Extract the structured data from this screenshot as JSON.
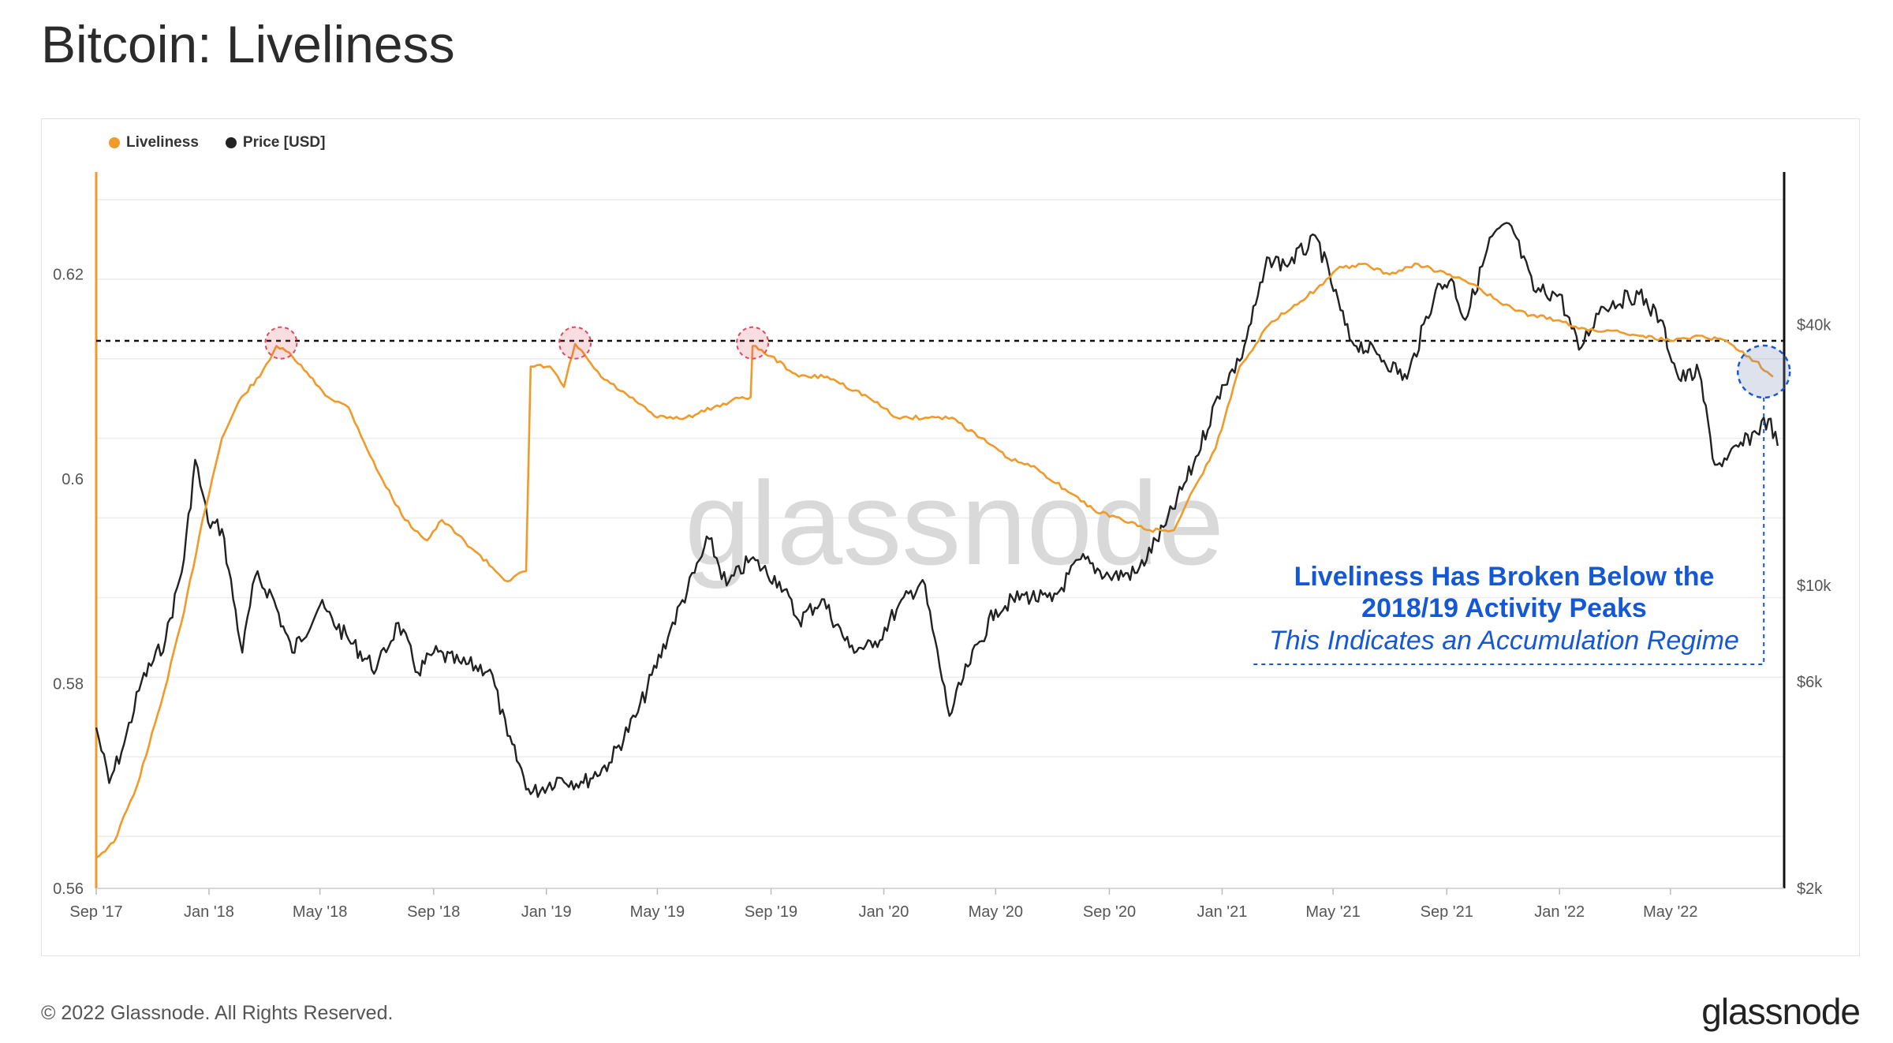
{
  "page": {
    "title": "Bitcoin: Liveliness",
    "copyright": "© 2022 Glassnode. All Rights Reserved.",
    "logo": "glassnode",
    "watermark": "glassnode"
  },
  "colors": {
    "liveliness": "#f09a2a",
    "price": "#222222",
    "annotation": "#1558d6",
    "highlight_red": "#e04a5a",
    "threshold": "#111111"
  },
  "chart_data": {
    "type": "line",
    "title": "Bitcoin: Liveliness",
    "legend": [
      "Liveliness",
      "Price [USD]"
    ],
    "legend_position": "top-left",
    "grid": true,
    "x_ticks": [
      "Sep '17",
      "Jan '18",
      "May '18",
      "Sep '18",
      "Jan '19",
      "May '19",
      "Sep '19",
      "Jan '20",
      "May '20",
      "Sep '20",
      "Jan '21",
      "May '21",
      "Sep '21",
      "Jan '22",
      "May '22"
    ],
    "x_range": [
      "2017-09-01",
      "2022-09-01"
    ],
    "y_left": {
      "label": "",
      "ticks": [
        "0.56",
        "0.58",
        "0.6",
        "0.62"
      ],
      "range": [
        0.56,
        0.63
      ]
    },
    "y_right": {
      "label": "",
      "scale": "log",
      "ticks": [
        "$2k",
        "$6k",
        "$10k",
        "$40k"
      ],
      "range": [
        2000,
        90000
      ]
    },
    "threshold_value": 0.6135,
    "series": [
      {
        "name": "Liveliness",
        "axis": "left",
        "points": [
          [
            "2017-09-01",
            0.563
          ],
          [
            "2017-09-20",
            0.5645
          ],
          [
            "2017-10-15",
            0.57
          ],
          [
            "2017-11-10",
            0.578
          ],
          [
            "2017-12-05",
            0.587
          ],
          [
            "2017-12-25",
            0.596
          ],
          [
            "2018-01-15",
            0.604
          ],
          [
            "2018-02-05",
            0.608
          ],
          [
            "2018-02-25",
            0.61
          ],
          [
            "2018-03-15",
            0.613
          ],
          [
            "2018-04-01",
            0.612
          ],
          [
            "2018-04-20",
            0.61
          ],
          [
            "2018-05-10",
            0.608
          ],
          [
            "2018-06-01",
            0.607
          ],
          [
            "2018-07-01",
            0.601
          ],
          [
            "2018-08-01",
            0.596
          ],
          [
            "2018-08-25",
            0.594
          ],
          [
            "2018-09-10",
            0.596
          ],
          [
            "2018-10-15",
            0.593
          ],
          [
            "2018-11-20",
            0.59
          ],
          [
            "2018-12-10",
            0.591
          ],
          [
            "2018-12-15",
            0.611
          ],
          [
            "2019-01-05",
            0.611
          ],
          [
            "2019-01-20",
            0.609
          ],
          [
            "2019-02-01",
            0.6132
          ],
          [
            "2019-03-01",
            0.61
          ],
          [
            "2019-04-01",
            0.608
          ],
          [
            "2019-05-01",
            0.606
          ],
          [
            "2019-06-01",
            0.606
          ],
          [
            "2019-07-01",
            0.607
          ],
          [
            "2019-08-01",
            0.608
          ],
          [
            "2019-08-10",
            0.608
          ],
          [
            "2019-08-12",
            0.613
          ],
          [
            "2019-09-01",
            0.612
          ],
          [
            "2019-10-01",
            0.61
          ],
          [
            "2019-11-01",
            0.61
          ],
          [
            "2019-12-15",
            0.608
          ],
          [
            "2020-01-15",
            0.606
          ],
          [
            "2020-02-15",
            0.606
          ],
          [
            "2020-03-15",
            0.606
          ],
          [
            "2020-04-15",
            0.604
          ],
          [
            "2020-05-15",
            0.602
          ],
          [
            "2020-06-15",
            0.601
          ],
          [
            "2020-07-15",
            0.599
          ],
          [
            "2020-08-15",
            0.597
          ],
          [
            "2020-09-15",
            0.596
          ],
          [
            "2020-10-15",
            0.595
          ],
          [
            "2020-11-10",
            0.595
          ],
          [
            "2020-12-01",
            0.599
          ],
          [
            "2020-12-25",
            0.603
          ],
          [
            "2021-01-20",
            0.611
          ],
          [
            "2021-02-20",
            0.615
          ],
          [
            "2021-03-20",
            0.617
          ],
          [
            "2021-04-20",
            0.619
          ],
          [
            "2021-05-05",
            0.6205
          ],
          [
            "2021-06-01",
            0.621
          ],
          [
            "2021-07-01",
            0.62
          ],
          [
            "2021-08-01",
            0.621
          ],
          [
            "2021-09-01",
            0.62
          ],
          [
            "2021-10-01",
            0.619
          ],
          [
            "2021-11-01",
            0.617
          ],
          [
            "2021-12-01",
            0.616
          ],
          [
            "2022-01-01",
            0.6155
          ],
          [
            "2022-02-01",
            0.6145
          ],
          [
            "2022-03-01",
            0.6145
          ],
          [
            "2022-04-01",
            0.614
          ],
          [
            "2022-05-01",
            0.6135
          ],
          [
            "2022-06-01",
            0.614
          ],
          [
            "2022-07-01",
            0.6135
          ],
          [
            "2022-08-01",
            0.6115
          ],
          [
            "2022-08-20",
            0.61
          ]
        ]
      },
      {
        "name": "Price [USD]",
        "axis": "right",
        "points": [
          [
            "2017-09-01",
            4700
          ],
          [
            "2017-09-15",
            3500
          ],
          [
            "2017-10-01",
            4300
          ],
          [
            "2017-10-20",
            6000
          ],
          [
            "2017-11-15",
            7500
          ],
          [
            "2017-12-05",
            11500
          ],
          [
            "2017-12-17",
            19500
          ],
          [
            "2017-12-31",
            14000
          ],
          [
            "2018-01-15",
            13500
          ],
          [
            "2018-02-06",
            7000
          ],
          [
            "2018-02-20",
            10500
          ],
          [
            "2018-03-10",
            9500
          ],
          [
            "2018-04-01",
            7000
          ],
          [
            "2018-05-01",
            9000
          ],
          [
            "2018-06-01",
            7500
          ],
          [
            "2018-07-01",
            6400
          ],
          [
            "2018-07-25",
            8200
          ],
          [
            "2018-08-15",
            6300
          ],
          [
            "2018-09-01",
            7000
          ],
          [
            "2018-10-01",
            6600
          ],
          [
            "2018-11-01",
            6400
          ],
          [
            "2018-11-20",
            4500
          ],
          [
            "2018-12-15",
            3300
          ],
          [
            "2019-01-15",
            3600
          ],
          [
            "2019-02-10",
            3500
          ],
          [
            "2019-03-10",
            3900
          ],
          [
            "2019-04-10",
            5100
          ],
          [
            "2019-05-15",
            7900
          ],
          [
            "2019-06-26",
            12800
          ],
          [
            "2019-07-15",
            10000
          ],
          [
            "2019-08-10",
            11500
          ],
          [
            "2019-09-10",
            10200
          ],
          [
            "2019-10-01",
            8300
          ],
          [
            "2019-10-26",
            9300
          ],
          [
            "2019-11-25",
            7200
          ],
          [
            "2019-12-20",
            7200
          ],
          [
            "2020-01-15",
            8800
          ],
          [
            "2020-02-12",
            10300
          ],
          [
            "2020-03-12",
            5000
          ],
          [
            "2020-04-01",
            6500
          ],
          [
            "2020-05-01",
            8800
          ],
          [
            "2020-06-01",
            9500
          ],
          [
            "2020-07-01",
            9200
          ],
          [
            "2020-08-01",
            11500
          ],
          [
            "2020-09-01",
            10500
          ],
          [
            "2020-10-01",
            10700
          ],
          [
            "2020-11-01",
            13800
          ],
          [
            "2020-12-01",
            19000
          ],
          [
            "2021-01-01",
            29000
          ],
          [
            "2021-01-20",
            33000
          ],
          [
            "2021-02-21",
            57000
          ],
          [
            "2021-03-10",
            55000
          ],
          [
            "2021-04-14",
            63000
          ],
          [
            "2021-05-19",
            37000
          ],
          [
            "2021-06-20",
            34000
          ],
          [
            "2021-07-20",
            30000
          ],
          [
            "2021-08-20",
            48000
          ],
          [
            "2021-09-06",
            51000
          ],
          [
            "2021-09-21",
            41000
          ],
          [
            "2021-10-20",
            64000
          ],
          [
            "2021-11-10",
            67500
          ],
          [
            "2021-12-04",
            48000
          ],
          [
            "2022-01-01",
            47000
          ],
          [
            "2022-01-22",
            35000
          ],
          [
            "2022-02-15",
            44000
          ],
          [
            "2022-03-28",
            47000
          ],
          [
            "2022-04-20",
            41000
          ],
          [
            "2022-05-10",
            30000
          ],
          [
            "2022-06-01",
            31000
          ],
          [
            "2022-06-18",
            19000
          ],
          [
            "2022-07-01",
            19500
          ],
          [
            "2022-08-15",
            24200
          ],
          [
            "2022-08-25",
            21000
          ]
        ]
      }
    ],
    "highlights": [
      {
        "date": "2018-03-20",
        "value": 0.6133,
        "style": "red"
      },
      {
        "date": "2019-02-01",
        "value": 0.6133,
        "style": "red"
      },
      {
        "date": "2019-08-12",
        "value": 0.6133,
        "style": "red"
      },
      {
        "date": "2022-08-10",
        "value": 0.6105,
        "style": "blue"
      }
    ],
    "annotation": {
      "line1": "Liveliness Has Broken Below the",
      "line2": "2018/19 Activity Peaks",
      "line3": "This Indicates an Accumulation Regime"
    }
  }
}
